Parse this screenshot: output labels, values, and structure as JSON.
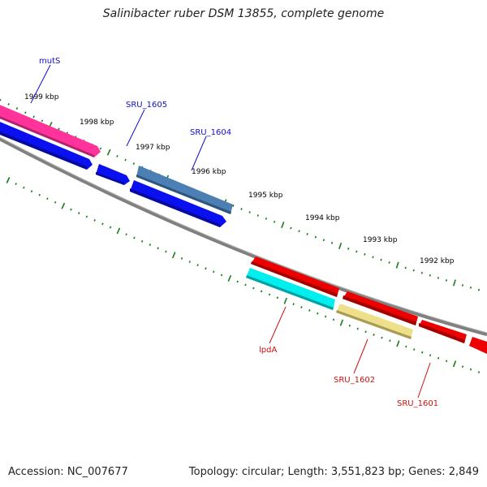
{
  "title": "Salinibacter ruber DSM 13855, complete genome",
  "footer": {
    "accession": "Accession: NC_007677",
    "summary": "Topology: circular; Length: 3,551,823 bp; Genes: 2,849"
  },
  "scale_labels": [
    "1999 kbp",
    "1998 kbp",
    "1997 kbp",
    "1996 kbp",
    "1995 kbp",
    "1994 kbp",
    "1993 kbp",
    "1992 kbp"
  ],
  "gene_labels": {
    "mutS": "mutS",
    "SRU_1605": "SRU_1605",
    "SRU_1604": "SRU_1604",
    "lpdA": "lpdA",
    "SRU_1602": "SRU_1602",
    "SRU_1601": "SRU_1601"
  },
  "colors": {
    "forward_label": "#1010cc",
    "reverse_label": "#cc1010",
    "mutS": "#ff3399",
    "cds_blue": "#0a10f0",
    "SRU_1604": "#4c7fb3",
    "cds_red": "#ee0000",
    "lpdA": "#00eeee",
    "SRU_1602": "#eee08a",
    "backbone": "#808080",
    "ticks": "#1a7a1a"
  }
}
